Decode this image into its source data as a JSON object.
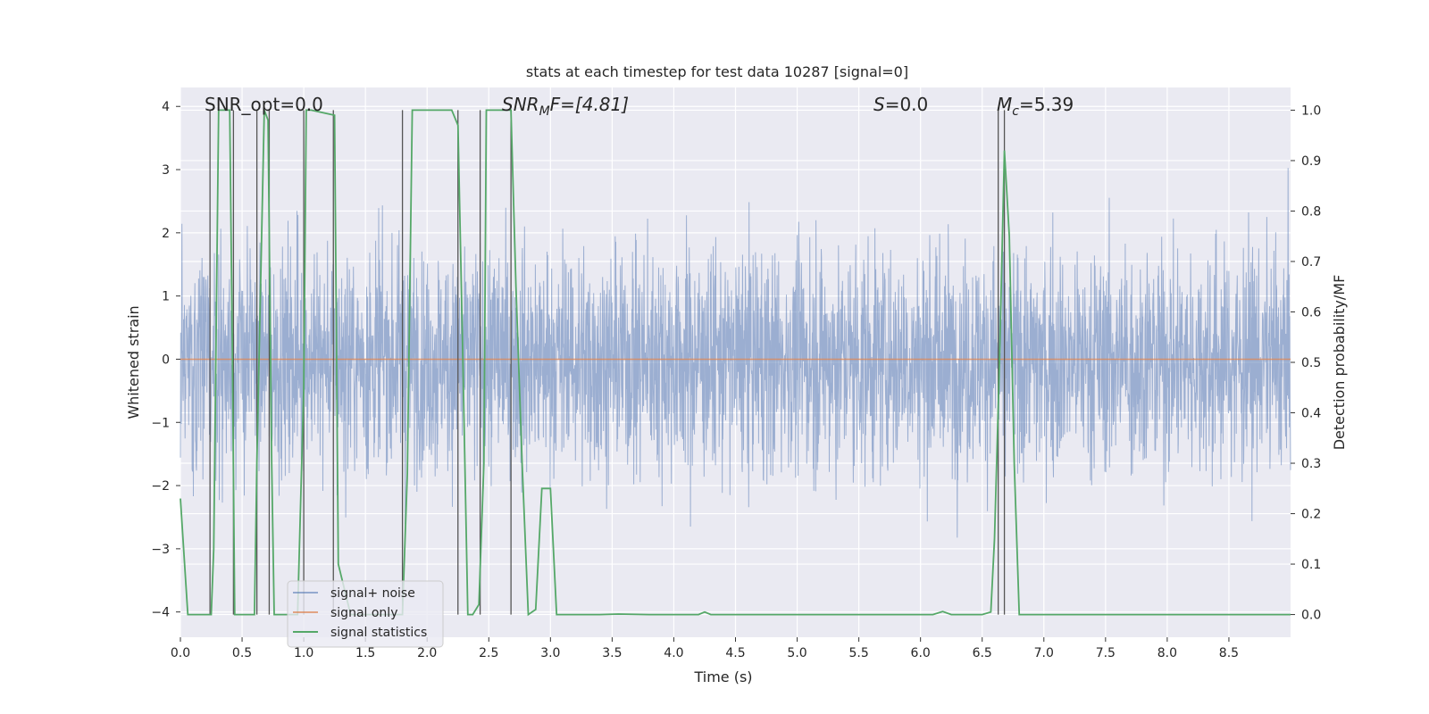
{
  "chart_data": {
    "type": "line",
    "title": "stats at each timestep for test data 10287 [signal=0]",
    "xlabel": "Time (s)",
    "ylabel": "Whitened strain",
    "y2label": "Detection probability/MF",
    "xlim": [
      0.0,
      9.0
    ],
    "ylim": [
      -4.4,
      4.3
    ],
    "y2lim": [
      -0.045,
      1.045
    ],
    "xticks": [
      0.0,
      0.5,
      1.0,
      1.5,
      2.0,
      2.5,
      3.0,
      3.5,
      4.0,
      4.5,
      5.0,
      5.5,
      6.0,
      6.5,
      7.0,
      7.5,
      8.0,
      8.5
    ],
    "xtick_labels": [
      "0.0",
      "0.5",
      "1.0",
      "1.5",
      "2.0",
      "2.5",
      "3.0",
      "3.5",
      "4.0",
      "4.5",
      "5.0",
      "5.5",
      "6.0",
      "6.5",
      "7.0",
      "7.5",
      "8.0",
      "8.5"
    ],
    "yticks": [
      -4,
      -3,
      -2,
      -1,
      0,
      1,
      2,
      3,
      4
    ],
    "ytick_labels": [
      "−4",
      "−3",
      "−2",
      "−1",
      "0",
      "1",
      "2",
      "3",
      "4"
    ],
    "y2ticks": [
      0.0,
      0.1,
      0.2,
      0.3,
      0.4,
      0.5,
      0.6,
      0.7,
      0.8,
      0.9,
      1.0
    ],
    "y2tick_labels": [
      "0.0",
      "0.1",
      "0.2",
      "0.3",
      "0.4",
      "0.5",
      "0.6",
      "0.7",
      "0.8",
      "0.9",
      "1.0"
    ],
    "annotations": {
      "snr_opt": "SNR_opt=0.0",
      "snr_mf_var": "SNR",
      "snr_mf_sub": "M",
      "snr_mf_rest": "F=[4.81]",
      "s_var": "S",
      "s_rest": "=0.0",
      "mc_var": "M",
      "mc_sub": "c",
      "mc_rest": "=5.39"
    },
    "series": [
      {
        "name": "signal+ noise",
        "color": "#4c72b0",
        "description": "whitened noise, approx gaussian, amplitude within about -3.6 to 3.9",
        "amplitude_envelope": [
          -3.6,
          3.9
        ]
      },
      {
        "name": "signal only",
        "color": "#dd8452",
        "y_constant": 0
      },
      {
        "name": "signal statistics",
        "color": "#55a868",
        "axis": "right",
        "x": [
          0.0,
          0.06,
          0.25,
          0.27,
          0.31,
          0.4,
          0.42,
          0.44,
          0.5,
          0.6,
          0.62,
          0.68,
          0.71,
          0.74,
          0.76,
          0.8,
          0.95,
          1.0,
          1.02,
          1.06,
          1.25,
          1.28,
          1.38,
          1.5,
          1.55,
          1.8,
          1.84,
          1.88,
          2.2,
          2.25,
          2.29,
          2.33,
          2.37,
          2.42,
          2.46,
          2.48,
          2.52,
          2.68,
          2.72,
          2.77,
          2.82,
          2.88,
          2.93,
          3.0,
          3.05,
          3.12,
          3.4,
          3.55,
          3.8,
          4.2,
          4.25,
          4.3,
          5.0,
          5.8,
          6.1,
          6.18,
          6.25,
          6.5,
          6.57,
          6.6,
          6.64,
          6.68,
          6.72,
          6.76,
          6.8,
          6.85,
          7.5,
          8.5,
          9.0
        ],
        "values": [
          0.23,
          0.0,
          0.0,
          0.13,
          1.0,
          1.0,
          0.55,
          0.0,
          0.0,
          0.0,
          0.3,
          1.0,
          0.98,
          0.3,
          0.0,
          0.0,
          0.0,
          0.45,
          1.0,
          1.0,
          0.99,
          0.1,
          0.0,
          0.0,
          0.0,
          0.0,
          0.28,
          1.0,
          1.0,
          0.97,
          0.5,
          0.0,
          0.0,
          0.02,
          0.3,
          1.0,
          1.0,
          1.0,
          0.65,
          0.3,
          0.0,
          0.01,
          0.25,
          0.25,
          0.0,
          0.0,
          0.0,
          0.001,
          0.0,
          0.0,
          0.005,
          0.0,
          0.0,
          0.0,
          0.0,
          0.006,
          0.0,
          0.0,
          0.005,
          0.15,
          0.5,
          0.92,
          0.75,
          0.3,
          0.0,
          0.0,
          0.0,
          0.0,
          0.0
        ]
      }
    ],
    "vlines_x": [
      0.24,
      0.43,
      0.62,
      0.72,
      1.0,
      1.24,
      1.8,
      2.25,
      2.43,
      2.68,
      6.63,
      6.68
    ],
    "legend": {
      "location": "lower-left",
      "entries": [
        "signal+ noise",
        "signal only",
        "signal statistics"
      ]
    },
    "grid": true
  }
}
